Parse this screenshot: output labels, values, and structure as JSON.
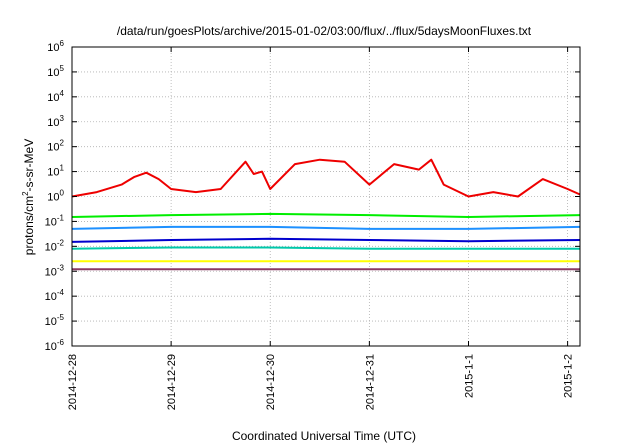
{
  "chart_data": {
    "type": "line",
    "title": "/data/run/goesPlots/archive/2015-01-02/03:00/flux/../flux/5daysMoonFluxes.txt",
    "xlabel": "Coordinated Universal Time (UTC)",
    "ylabel": "protons/cm²-s-sr-MeV",
    "ylabel_parts": {
      "base": "protons/cm",
      "sup": "2",
      "rest": "-s-sr-MeV"
    },
    "y_scale": "log",
    "ylim": [
      1e-06,
      1000000
    ],
    "xlim": [
      "2014-12-28",
      "2015-01-02 03:00"
    ],
    "grid": true,
    "legend": "none",
    "x_ticks": [
      "2014-12-28",
      "2014-12-29",
      "2014-12-30",
      "2014-12-31",
      "2015-1-1",
      "2015-1-2"
    ],
    "y_ticks": [
      {
        "base": "10",
        "exp": "6"
      },
      {
        "base": "10",
        "exp": "5"
      },
      {
        "base": "10",
        "exp": "4"
      },
      {
        "base": "10",
        "exp": "3"
      },
      {
        "base": "10",
        "exp": "2"
      },
      {
        "base": "10",
        "exp": "1"
      },
      {
        "base": "10",
        "exp": "0"
      },
      {
        "base": "10",
        "exp": "-1"
      },
      {
        "base": "10",
        "exp": "-2"
      },
      {
        "base": "10",
        "exp": "-3"
      },
      {
        "base": "10",
        "exp": "-4"
      },
      {
        "base": "10",
        "exp": "-5"
      },
      {
        "base": "10",
        "exp": "-6"
      }
    ],
    "series": [
      {
        "color": "#ee0000",
        "x": [
          "2014-12-28 00:00",
          "2014-12-28 06:00",
          "2014-12-28 12:00",
          "2014-12-28 15:00",
          "2014-12-28 18:00",
          "2014-12-28 21:00",
          "2014-12-29 00:00",
          "2014-12-29 06:00",
          "2014-12-29 12:00",
          "2014-12-29 18:00",
          "2014-12-29 20:00",
          "2014-12-29 22:00",
          "2014-12-30 00:00",
          "2014-12-30 06:00",
          "2014-12-30 12:00",
          "2014-12-30 18:00",
          "2014-12-31 00:00",
          "2014-12-31 06:00",
          "2014-12-31 12:00",
          "2014-12-31 15:00",
          "2014-12-31 18:00",
          "2015-01-01 00:00",
          "2015-01-01 06:00",
          "2015-01-01 12:00",
          "2015-01-01 18:00",
          "2015-01-02 00:00",
          "2015-01-02 03:00"
        ],
        "y": [
          1.0,
          1.5,
          3.0,
          6.0,
          9.0,
          5.0,
          2.0,
          1.5,
          2.0,
          25.0,
          8.0,
          10.0,
          2.0,
          20.0,
          30.0,
          25.0,
          3.0,
          20.0,
          12.0,
          30.0,
          3.0,
          1.0,
          1.5,
          1.0,
          5.0,
          2.0,
          1.2
        ]
      },
      {
        "color": "#00ee00",
        "x": [
          "2014-12-28 00:00",
          "2014-12-29 00:00",
          "2014-12-30 00:00",
          "2014-12-31 00:00",
          "2015-01-01 00:00",
          "2015-01-02 03:00"
        ],
        "y": [
          0.15,
          0.18,
          0.2,
          0.18,
          0.15,
          0.18
        ]
      },
      {
        "color": "#1e90ff",
        "x": [
          "2014-12-28 00:00",
          "2014-12-29 00:00",
          "2014-12-30 00:00",
          "2014-12-31 00:00",
          "2015-01-01 00:00",
          "2015-01-02 03:00"
        ],
        "y": [
          0.05,
          0.06,
          0.06,
          0.05,
          0.05,
          0.06
        ]
      },
      {
        "color": "#0000cd",
        "x": [
          "2014-12-28 00:00",
          "2014-12-29 00:00",
          "2014-12-30 00:00",
          "2014-12-31 00:00",
          "2015-01-01 00:00",
          "2015-01-02 03:00"
        ],
        "y": [
          0.015,
          0.018,
          0.02,
          0.018,
          0.016,
          0.018
        ]
      },
      {
        "color": "#00c8aa",
        "x": [
          "2014-12-28 00:00",
          "2014-12-29 00:00",
          "2014-12-30 00:00",
          "2014-12-31 00:00",
          "2015-01-01 00:00",
          "2015-01-02 03:00"
        ],
        "y": [
          0.008,
          0.009,
          0.009,
          0.008,
          0.008,
          0.008
        ]
      },
      {
        "color": "#ffff00",
        "x": [
          "2014-12-28 00:00",
          "2014-12-29 00:00",
          "2014-12-30 00:00",
          "2014-12-31 00:00",
          "2015-01-01 00:00",
          "2015-01-02 03:00"
        ],
        "y": [
          0.0025,
          0.0025,
          0.0025,
          0.0025,
          0.0025,
          0.0025
        ]
      },
      {
        "color": "#8b3a62",
        "x": [
          "2014-12-28 00:00",
          "2014-12-29 00:00",
          "2014-12-30 00:00",
          "2014-12-31 00:00",
          "2015-01-01 00:00",
          "2015-01-02 03:00"
        ],
        "y": [
          0.0012,
          0.0012,
          0.0012,
          0.0012,
          0.0012,
          0.0012
        ]
      }
    ]
  }
}
